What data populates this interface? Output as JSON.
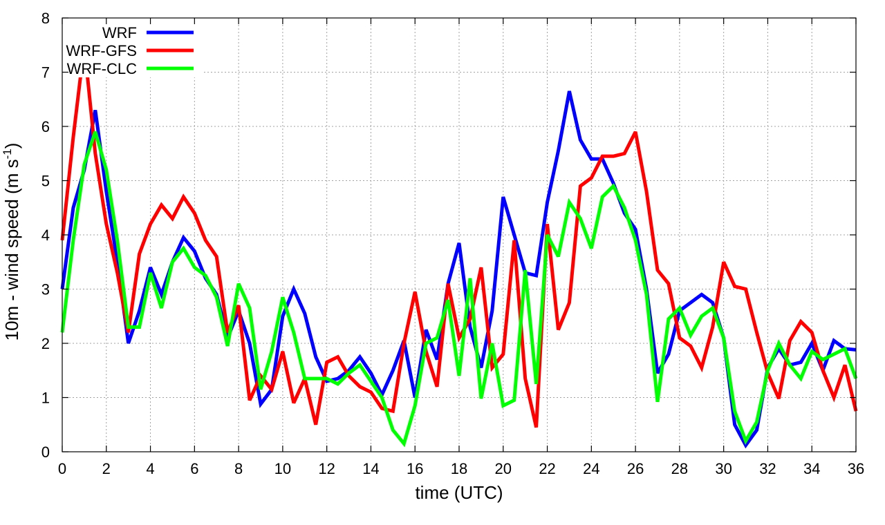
{
  "chart_data": {
    "type": "line",
    "xlabel": "time (UTC)",
    "ylabel": {
      "main": "10m - wind speed  (m s",
      "sup": "-1",
      "close": ")"
    },
    "xlim": [
      0,
      36
    ],
    "ylim": [
      0,
      8
    ],
    "xticks": [
      0,
      2,
      4,
      6,
      8,
      10,
      12,
      14,
      16,
      18,
      20,
      22,
      24,
      26,
      28,
      30,
      32,
      34,
      36
    ],
    "yticks": [
      0,
      1,
      2,
      3,
      4,
      5,
      6,
      7,
      8
    ],
    "grid": true,
    "legend_position": "top-left",
    "x": [
      0,
      0.5,
      1,
      1.5,
      2,
      2.5,
      3,
      3.5,
      4,
      4.5,
      5,
      5.5,
      6,
      6.5,
      7,
      7.5,
      8,
      8.5,
      9,
      9.5,
      10,
      10.5,
      11,
      11.5,
      12,
      12.5,
      13,
      13.5,
      14,
      14.5,
      15,
      15.5,
      16,
      16.5,
      17,
      17.5,
      18,
      18.5,
      19,
      19.5,
      20,
      20.5,
      21,
      21.5,
      22,
      22.5,
      23,
      23.5,
      24,
      24.5,
      25,
      25.5,
      26,
      26.5,
      27,
      27.5,
      28,
      28.5,
      29,
      29.5,
      30,
      30.5,
      31,
      31.5,
      32,
      32.5,
      33,
      33.5,
      34,
      34.5,
      35,
      35.5,
      36
    ],
    "series": [
      {
        "name": "WRF",
        "color": "#0000ff",
        "values": [
          3.0,
          4.5,
          5.2,
          6.3,
          4.8,
          3.5,
          2.0,
          2.6,
          3.4,
          2.9,
          3.5,
          3.95,
          3.7,
          3.2,
          2.9,
          2.1,
          2.6,
          2.0,
          0.88,
          1.15,
          2.5,
          3.0,
          2.55,
          1.75,
          1.3,
          1.35,
          1.5,
          1.75,
          1.45,
          1.05,
          1.5,
          2.05,
          1.0,
          2.25,
          1.7,
          3.1,
          3.85,
          2.3,
          1.55,
          2.6,
          4.7,
          4.0,
          3.3,
          3.25,
          4.6,
          5.55,
          6.65,
          5.75,
          5.4,
          5.4,
          4.95,
          4.4,
          4.1,
          3.0,
          1.45,
          1.8,
          2.6,
          2.75,
          2.9,
          2.75,
          2.1,
          0.5,
          0.12,
          0.4,
          1.55,
          1.9,
          1.6,
          1.65,
          2.0,
          1.5,
          2.05,
          1.9,
          1.88
        ]
      },
      {
        "name": "WRF-GFS",
        "color": "#ff0000",
        "values": [
          3.9,
          5.8,
          7.5,
          5.5,
          4.2,
          3.3,
          2.2,
          3.65,
          4.2,
          4.55,
          4.3,
          4.7,
          4.4,
          3.9,
          3.6,
          2.2,
          2.7,
          0.95,
          1.4,
          1.15,
          1.85,
          0.9,
          1.35,
          0.5,
          1.65,
          1.75,
          1.4,
          1.2,
          1.1,
          0.8,
          0.75,
          2.0,
          2.95,
          1.85,
          1.2,
          3.1,
          2.1,
          2.45,
          3.4,
          1.55,
          1.8,
          3.9,
          1.35,
          0.45,
          4.2,
          2.25,
          2.75,
          4.9,
          5.05,
          5.45,
          5.45,
          5.5,
          5.9,
          4.8,
          3.35,
          3.1,
          2.1,
          1.95,
          1.55,
          2.3,
          3.5,
          3.05,
          3.0,
          2.2,
          1.45,
          0.98,
          2.05,
          2.4,
          2.2,
          1.5,
          1.0,
          1.6,
          0.75
        ]
      },
      {
        "name": "WRF-CLC",
        "color": "#00ff00",
        "values": [
          2.2,
          3.9,
          5.3,
          5.9,
          5.2,
          3.9,
          2.3,
          2.3,
          3.3,
          2.65,
          3.5,
          3.75,
          3.4,
          3.25,
          2.85,
          1.95,
          3.1,
          2.65,
          1.15,
          1.85,
          2.85,
          2.2,
          1.35,
          1.35,
          1.35,
          1.25,
          1.45,
          1.6,
          1.3,
          1.0,
          0.4,
          0.15,
          0.85,
          2.0,
          2.1,
          2.8,
          1.4,
          3.2,
          0.98,
          2.0,
          0.85,
          0.95,
          3.35,
          1.25,
          4.0,
          3.6,
          4.6,
          4.3,
          3.75,
          4.7,
          4.9,
          4.5,
          3.9,
          2.9,
          0.92,
          2.45,
          2.65,
          2.15,
          2.5,
          2.65,
          2.1,
          0.75,
          0.2,
          0.55,
          1.5,
          2.0,
          1.6,
          1.35,
          1.85,
          1.7,
          1.8,
          1.9,
          1.35
        ]
      }
    ]
  }
}
